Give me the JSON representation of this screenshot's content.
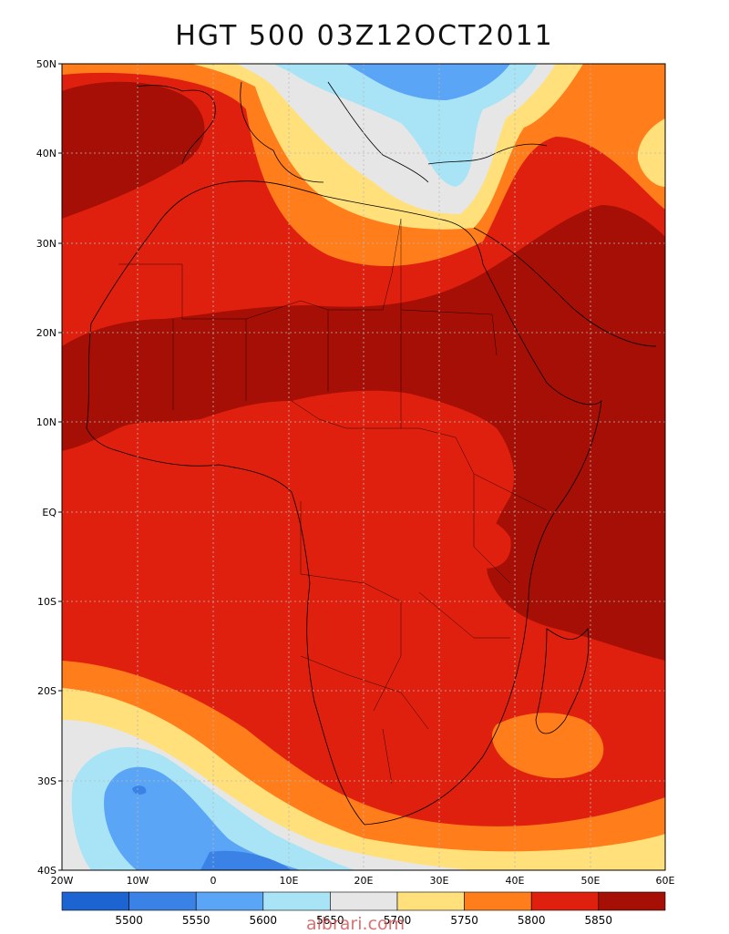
{
  "title": "HGT 500 03Z12OCT2011",
  "watermark": "aibrari.com",
  "lat_ticks": [
    "50N",
    "40N",
    "30N",
    "20N",
    "10N",
    "EQ",
    "10S",
    "20S",
    "30S",
    "40S"
  ],
  "lon_ticks": [
    "20W",
    "10W",
    "0",
    "10E",
    "20E",
    "30E",
    "40E",
    "50E",
    "60E"
  ],
  "colorbar": {
    "labels": [
      "5500",
      "5550",
      "5600",
      "5650",
      "5700",
      "5750",
      "5800",
      "5850"
    ],
    "colors": [
      "#1c64d2",
      "#3a82e6",
      "#5aa5f5",
      "#a8e4f6",
      "#e6e6e6",
      "#ffe07a",
      "#ff7d1a",
      "#e0200e",
      "#a60f05"
    ]
  },
  "palette": {
    "c1": "#1c64d2",
    "c2": "#3a82e6",
    "c3": "#5aa5f5",
    "c4": "#a8e4f6",
    "c5": "#e6e6e6",
    "c6": "#ffe07a",
    "c7": "#ff7d1a",
    "c8": "#e0200e",
    "c9": "#a60f05"
  }
}
